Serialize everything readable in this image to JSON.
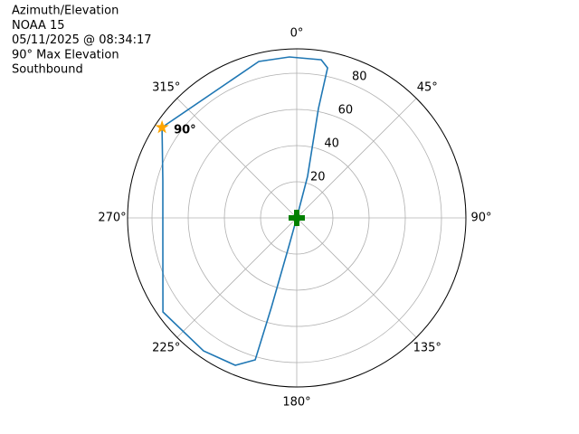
{
  "chart_data": {
    "type": "polar",
    "title": [
      "Azimuth/Elevation",
      "NOAA 15",
      "05/11/2025 @ 08:34:17",
      "90° Max Elevation",
      "Southbound"
    ],
    "direction": "clockwise",
    "zero": "north",
    "rlim": [
      0,
      93.5
    ],
    "rticks": [
      20,
      40,
      60,
      80
    ],
    "rlabel_angle": 22.5,
    "thetaticks": [
      {
        "value": 0,
        "label": "0°"
      },
      {
        "value": 45,
        "label": "45°"
      },
      {
        "value": 90,
        "label": "90°"
      },
      {
        "value": 135,
        "label": "135°"
      },
      {
        "value": 180,
        "label": "180°"
      },
      {
        "value": 225,
        "label": "225°"
      },
      {
        "value": 270,
        "label": "270°"
      },
      {
        "value": 315,
        "label": "315°"
      }
    ],
    "grid": true,
    "series": [
      {
        "color": "#1f77b4",
        "theta": [
          303.9,
          285.5,
          258.9,
          234.9,
          215.0,
          202.6,
          196.3,
          195.8,
          195.4,
          15,
          14.6,
          11.2,
          11.6,
          8.8,
          357.4,
          346.4,
          303.9
        ],
        "r": [
          89.7,
          76.8,
          75.4,
          90.4,
          89.8,
          88.3,
          81.8,
          51.4,
          15,
          0,
          23.8,
          61.7,
          84.7,
          88.5,
          89.1,
          89.0,
          89.7
        ]
      }
    ],
    "markers": [
      {
        "marker": "star",
        "color": "#ffa500",
        "theta": 303.9,
        "r": 89.7,
        "label": "90°"
      },
      {
        "marker": "plus",
        "color": "#008000",
        "theta": 0,
        "r": 0
      }
    ]
  }
}
